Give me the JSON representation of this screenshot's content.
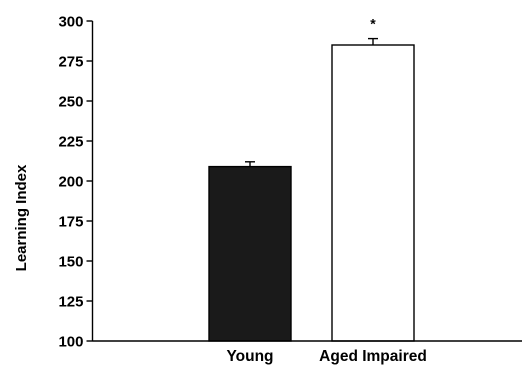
{
  "chart_data": {
    "type": "bar",
    "title": "",
    "xlabel": "",
    "ylabel": "Learning Index",
    "ylim": [
      100,
      300
    ],
    "yticks": [
      100,
      125,
      150,
      175,
      200,
      225,
      250,
      275,
      300
    ],
    "yticks_labels": [
      "100",
      "125",
      "150",
      "175",
      "200",
      "225",
      "250",
      "275",
      "300"
    ],
    "categories": [
      "Young",
      "Aged Impaired"
    ],
    "values": [
      209,
      285
    ],
    "errors": [
      3,
      4
    ],
    "bar_colors": [
      "#1a1a1a",
      "#ffffff"
    ],
    "bar_edge_color": "#000000",
    "annotations": [
      {
        "category": "Aged Impaired",
        "text": "*"
      }
    ],
    "grid": false,
    "legend": "none"
  }
}
